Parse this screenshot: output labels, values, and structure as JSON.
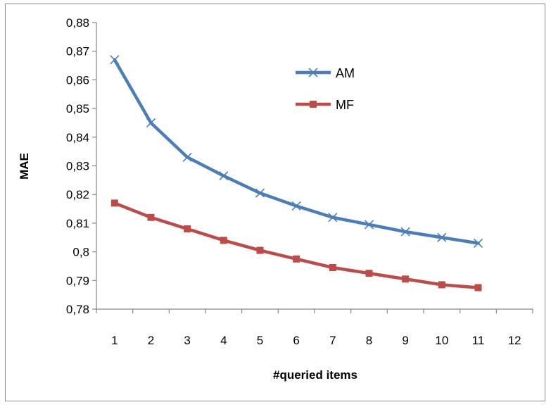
{
  "chart_data": {
    "type": "line",
    "title": "",
    "xlabel": "#queried items",
    "ylabel": "MAE",
    "x": [
      1,
      2,
      3,
      4,
      5,
      6,
      7,
      8,
      9,
      10,
      11
    ],
    "x_ticks": [
      "1",
      "2",
      "3",
      "4",
      "5",
      "6",
      "7",
      "8",
      "9",
      "10",
      "11",
      "12"
    ],
    "xlim": [
      0.5,
      12.5
    ],
    "ylim": [
      0.78,
      0.88
    ],
    "y_ticks": [
      "0,78",
      "0,79",
      "0,8",
      "0,81",
      "0,82",
      "0,83",
      "0,84",
      "0,85",
      "0,86",
      "0,87",
      "0,88"
    ],
    "y_tick_values": [
      0.78,
      0.79,
      0.8,
      0.81,
      0.82,
      0.83,
      0.84,
      0.85,
      0.86,
      0.87,
      0.88
    ],
    "grid": false,
    "legend_position": "top-center",
    "series": [
      {
        "name": "AM",
        "marker": "x",
        "color": "#4a7ebb",
        "values": [
          0.867,
          0.845,
          0.833,
          0.8265,
          0.8205,
          0.816,
          0.812,
          0.8095,
          0.807,
          0.805,
          0.803
        ]
      },
      {
        "name": "MF",
        "marker": "square",
        "color": "#be4b48",
        "values": [
          0.817,
          0.812,
          0.808,
          0.804,
          0.8005,
          0.7975,
          0.7945,
          0.7925,
          0.7905,
          0.7885,
          0.7875
        ]
      }
    ]
  }
}
